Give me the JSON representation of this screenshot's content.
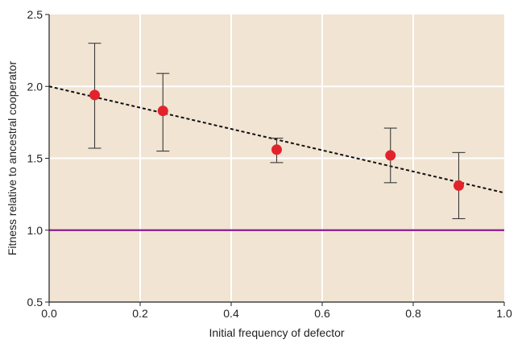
{
  "chart_data": {
    "type": "scatter",
    "title": "",
    "xlabel": "Initial frequency of defector",
    "ylabel": "Fitness relative to ancestral cooperator",
    "xlim": [
      0.0,
      1.0
    ],
    "ylim": [
      0.5,
      2.5
    ],
    "x_ticks": [
      "0.0",
      "0.2",
      "0.4",
      "0.6",
      "0.8",
      "1.0"
    ],
    "y_ticks": [
      "0.5",
      "1.0",
      "1.5",
      "2.0",
      "2.5"
    ],
    "grid": true,
    "legend": "none",
    "points": [
      {
        "x": 0.1,
        "y": 1.94,
        "err_low": 1.57,
        "err_high": 2.3
      },
      {
        "x": 0.25,
        "y": 1.83,
        "err_low": 1.55,
        "err_high": 2.09
      },
      {
        "x": 0.5,
        "y": 1.56,
        "err_low": 1.47,
        "err_high": 1.64
      },
      {
        "x": 0.75,
        "y": 1.52,
        "err_low": 1.33,
        "err_high": 1.71
      },
      {
        "x": 0.9,
        "y": 1.31,
        "err_low": 1.08,
        "err_high": 1.54
      }
    ],
    "trend_line": {
      "x": [
        0.0,
        1.0
      ],
      "y": [
        2.0,
        1.26
      ],
      "style": "dashed"
    },
    "reference_line": {
      "y": 1.0
    },
    "colors": {
      "plot_background": "#f1e4d3",
      "grid": "#ffffff",
      "points": "#e4222b",
      "error_bars": "#3a3a3a",
      "trend_line": "#111111",
      "reference_line": "#8b1a8b"
    }
  }
}
